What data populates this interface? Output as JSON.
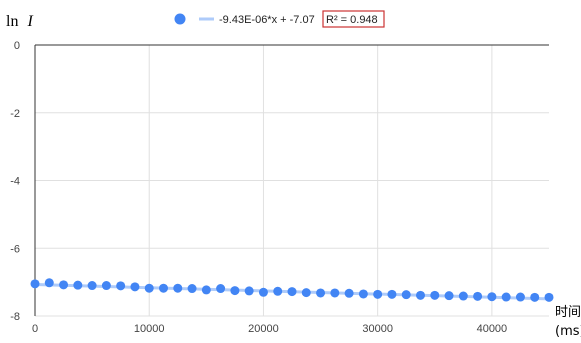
{
  "chart_data": {
    "type": "scatter",
    "ylabel_text": "ln",
    "ylabel_var": "I",
    "xlabel_line1": "时间",
    "xlabel_line2": "(ms)",
    "xlim": [
      0,
      45000
    ],
    "ylim": [
      -8,
      0
    ],
    "xticks": [
      0,
      10000,
      20000,
      30000,
      40000
    ],
    "yticks": [
      0,
      -2,
      -4,
      -6,
      -8
    ],
    "grid": true,
    "legend_placement": "top",
    "trendline": {
      "type": "linear",
      "slope": -9.43e-06,
      "intercept": -7.07,
      "equation_label": "-9.43E-06*x + -7.07",
      "r2_label": "R² = 0.948"
    },
    "point_color": "#4285f4",
    "trendline_color": "#aecbfa",
    "r2_box_color": "#cc3333",
    "series": [
      {
        "x": [
          0,
          1250,
          2500,
          3750,
          5000,
          6250,
          7500,
          8750,
          10000,
          11250,
          12500,
          13750,
          15000,
          16250,
          17500,
          18750,
          20000,
          21250,
          22500,
          23750,
          25000,
          26250,
          27500,
          28750,
          30000,
          31250,
          32500,
          33750,
          35000,
          36250,
          37500,
          38750,
          40000,
          41250,
          42500,
          43750,
          45000
        ],
        "y": [
          -7.05,
          -7.02,
          -7.08,
          -7.09,
          -7.1,
          -7.1,
          -7.11,
          -7.14,
          -7.18,
          -7.18,
          -7.18,
          -7.19,
          -7.23,
          -7.19,
          -7.25,
          -7.26,
          -7.3,
          -7.27,
          -7.28,
          -7.31,
          -7.32,
          -7.32,
          -7.33,
          -7.35,
          -7.36,
          -7.36,
          -7.37,
          -7.39,
          -7.39,
          -7.4,
          -7.41,
          -7.42,
          -7.43,
          -7.44,
          -7.44,
          -7.45,
          -7.45
        ]
      }
    ]
  }
}
